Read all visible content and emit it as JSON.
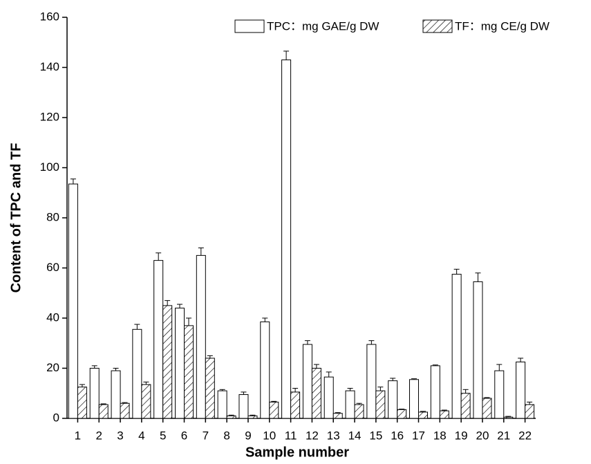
{
  "chart_data": {
    "type": "bar",
    "x_label": "Sample number",
    "y_label": "Content of TPC and TF",
    "categories": [
      "1",
      "2",
      "3",
      "4",
      "5",
      "6",
      "7",
      "8",
      "9",
      "10",
      "11",
      "12",
      "13",
      "14",
      "15",
      "16",
      "17",
      "18",
      "19",
      "20",
      "21",
      "22"
    ],
    "series": [
      {
        "name": "TPC：mg GAE/g DW",
        "color": "#ffffff",
        "pattern": "none",
        "values": [
          93.5,
          20,
          19,
          35.5,
          63,
          44,
          65,
          11,
          9.5,
          38.5,
          143,
          29.5,
          16.5,
          11,
          29.5,
          15,
          15.5,
          21,
          57.5,
          54.5,
          19,
          22.5
        ],
        "errors": [
          2,
          1,
          1,
          2,
          3,
          1.5,
          3,
          0.5,
          1,
          1.5,
          3.5,
          1.5,
          2,
          1,
          1.5,
          1,
          0.3,
          0.3,
          2,
          3.5,
          2.5,
          1.5
        ]
      },
      {
        "name": "TF：mg CE/g DW",
        "color": "#ffffff",
        "pattern": "hatch",
        "values": [
          12.5,
          5.5,
          6,
          13.5,
          45,
          37,
          24,
          1,
          1,
          6.5,
          10.5,
          20,
          2,
          5.5,
          11,
          3.5,
          2.5,
          3,
          10,
          8,
          0.5,
          5.5
        ],
        "errors": [
          1,
          0.3,
          0.3,
          1,
          2,
          3,
          1,
          0.3,
          0.3,
          0.3,
          1.5,
          1.5,
          0.3,
          0.5,
          1.5,
          0.2,
          0.3,
          0.3,
          1.5,
          0.3,
          0.3,
          1
        ]
      }
    ],
    "ylim": [
      0,
      160
    ],
    "yticks": [
      0,
      20,
      40,
      60,
      80,
      100,
      120,
      140,
      160
    ],
    "legend": "top-right"
  }
}
